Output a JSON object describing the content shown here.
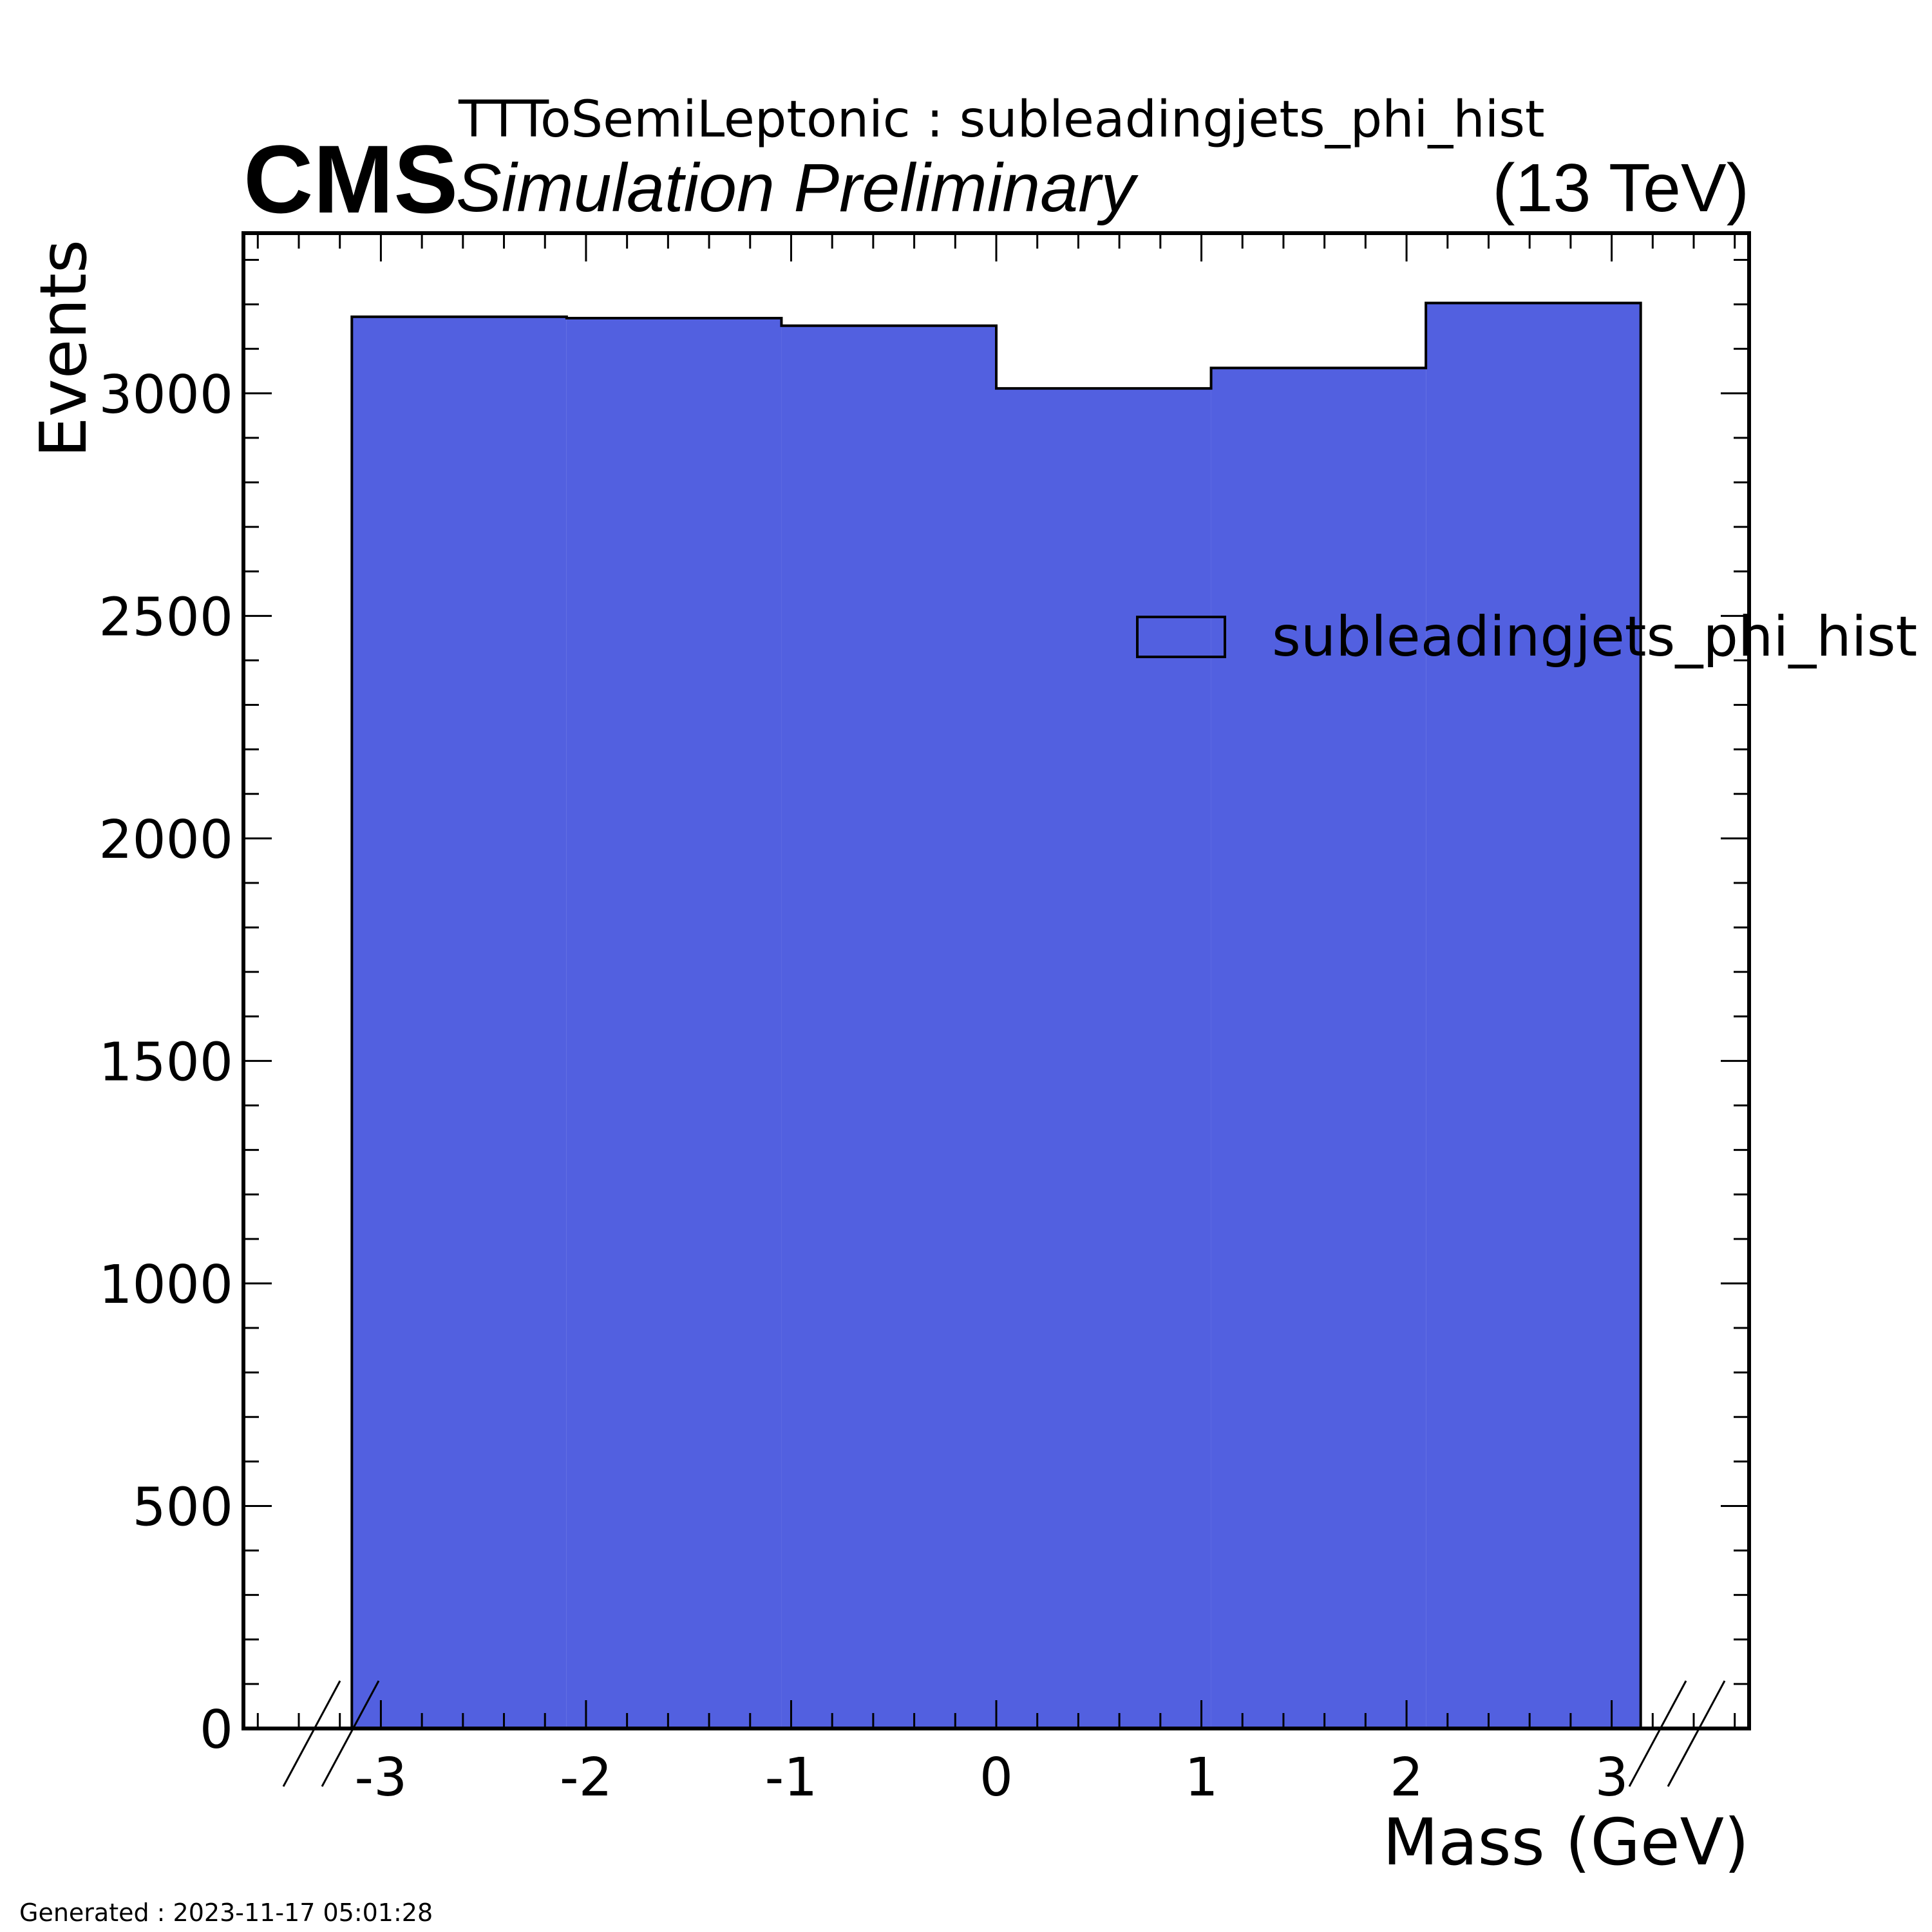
{
  "header": {
    "experiment": "CMS",
    "status": "Simulation Preliminary",
    "energy": "(13 TeV)",
    "title": "TTToSemiLeptonic : subleadingjets_phi_hist"
  },
  "footer": {
    "generated": "Generated : 2023-11-17 05:01:28"
  },
  "colors": {
    "fill": "#5260e0",
    "edge": "#000000"
  },
  "chart_data": {
    "type": "bar",
    "subtype": "histogram",
    "title": "TTToSemiLeptonic : subleadingjets_phi_hist",
    "xlabel": "Mass (GeV)",
    "ylabel": "Events",
    "xlim": [
      -3.67,
      3.67
    ],
    "ylim": [
      0,
      3360
    ],
    "x_ticks": [
      -3,
      -2,
      -1,
      0,
      1,
      2,
      3
    ],
    "y_ticks": [
      0,
      500,
      1000,
      1500,
      2000,
      2500,
      3000
    ],
    "bin_edges": [
      -3.1416,
      -2.0944,
      -1.0472,
      0,
      1.0472,
      2.0944,
      3.1416
    ],
    "series": [
      {
        "name": "subleadingjets_phi_hist",
        "values": [
          3172,
          3169,
          3152,
          3011,
          3057,
          3203
        ]
      }
    ],
    "legend_placement": "top-right",
    "axis_break_marks": true,
    "grid": false
  }
}
